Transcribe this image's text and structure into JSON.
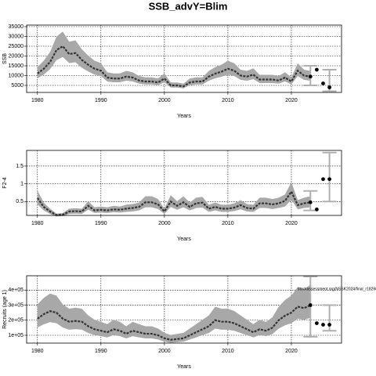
{
  "title": "SSB_advY=Blim",
  "chart_data": [
    {
      "type": "line",
      "ylabel": "SSB",
      "xlabel": "Years",
      "color": "#333333",
      "band_color": "#a8a8a8",
      "interval_color": "#b0b0b0",
      "grid": true,
      "x": [
        1980,
        1981,
        1982,
        1983,
        1984,
        1985,
        1986,
        1987,
        1988,
        1989,
        1990,
        1991,
        1992,
        1993,
        1994,
        1995,
        1996,
        1997,
        1998,
        1999,
        2000,
        2001,
        2002,
        2003,
        2004,
        2005,
        2006,
        2007,
        2008,
        2009,
        2010,
        2011,
        2012,
        2013,
        2014,
        2015,
        2016,
        2017,
        2018,
        2019,
        2020,
        2021,
        2022,
        2023
      ],
      "values": [
        11000,
        13500,
        17000,
        23000,
        25000,
        21000,
        21500,
        18000,
        15500,
        13500,
        12500,
        9000,
        8500,
        8500,
        9500,
        9000,
        7500,
        7000,
        7000,
        6500,
        8500,
        5000,
        5000,
        4500,
        6500,
        7000,
        7000,
        9500,
        11000,
        12000,
        13500,
        12500,
        10000,
        9500,
        10500,
        8000,
        8000,
        8000,
        7500,
        9000,
        7000,
        12500,
        10000,
        9500
      ],
      "low": [
        8600,
        10500,
        13300,
        17900,
        19500,
        16400,
        16800,
        14000,
        12100,
        10500,
        9800,
        7000,
        6600,
        6600,
        7400,
        7000,
        5900,
        5500,
        5500,
        5100,
        6600,
        3900,
        3900,
        3500,
        5100,
        5500,
        5500,
        7400,
        8600,
        9400,
        10500,
        9800,
        7800,
        7400,
        8200,
        6200,
        6200,
        6200,
        5900,
        7000,
        5500,
        9800,
        7800,
        7400
      ],
      "high": [
        14300,
        17600,
        22100,
        29900,
        32500,
        27300,
        28000,
        23400,
        20200,
        17600,
        16300,
        11700,
        11100,
        11100,
        12400,
        11700,
        9800,
        9100,
        9100,
        8500,
        11100,
        6500,
        6500,
        5900,
        8500,
        9100,
        9100,
        12400,
        14300,
        15600,
        17600,
        16300,
        13000,
        12400,
        13700,
        10400,
        10400,
        10400,
        9800,
        11700,
        9100,
        16300,
        13000,
        12400
      ],
      "forecast": {
        "x": [
          2023,
          2024,
          2025,
          2026
        ],
        "values": [
          9500,
          13000,
          6000,
          4000
        ]
      },
      "intervals": [
        {
          "x": 2023,
          "low": 5000,
          "high": 15000
        },
        {
          "x": 2026,
          "low": 2000,
          "high": 13000
        }
      ],
      "xlim": [
        1978.3,
        2027.9
      ],
      "xticks": [
        1980,
        1990,
        2000,
        2010,
        2020
      ],
      "ylim": [
        1400,
        35800
      ],
      "yticks": [
        5000,
        10000,
        15000,
        20000,
        25000,
        30000,
        35000
      ]
    },
    {
      "type": "line",
      "ylabel": "F2-4",
      "xlabel": "Years",
      "color": "#333333",
      "band_color": "#a8a8a8",
      "interval_color": "#b0b0b0",
      "grid": true,
      "x": [
        1980,
        1981,
        1982,
        1983,
        1984,
        1985,
        1986,
        1987,
        1988,
        1989,
        1990,
        1991,
        1992,
        1993,
        1994,
        1995,
        1996,
        1997,
        1998,
        1999,
        2000,
        2001,
        2002,
        2003,
        2004,
        2005,
        2006,
        2007,
        2008,
        2009,
        2010,
        2011,
        2012,
        2013,
        2014,
        2015,
        2016,
        2017,
        2018,
        2019,
        2020,
        2021,
        2022,
        2023
      ],
      "values": [
        0.6,
        0.35,
        0.22,
        0.12,
        0.13,
        0.22,
        0.23,
        0.22,
        0.38,
        0.25,
        0.27,
        0.25,
        0.28,
        0.27,
        0.3,
        0.32,
        0.35,
        0.48,
        0.48,
        0.42,
        0.22,
        0.5,
        0.38,
        0.48,
        0.35,
        0.45,
        0.47,
        0.3,
        0.35,
        0.3,
        0.3,
        0.33,
        0.4,
        0.32,
        0.3,
        0.45,
        0.45,
        0.42,
        0.45,
        0.52,
        0.78,
        0.4,
        0.45,
        0.48
      ],
      "low": [
        0.42,
        0.25,
        0.15,
        0.08,
        0.09,
        0.15,
        0.16,
        0.15,
        0.27,
        0.18,
        0.19,
        0.18,
        0.2,
        0.19,
        0.21,
        0.22,
        0.25,
        0.34,
        0.34,
        0.29,
        0.15,
        0.35,
        0.27,
        0.34,
        0.25,
        0.32,
        0.33,
        0.21,
        0.25,
        0.21,
        0.21,
        0.23,
        0.28,
        0.22,
        0.21,
        0.32,
        0.32,
        0.29,
        0.32,
        0.36,
        0.55,
        0.28,
        0.32,
        0.34
      ],
      "high": [
        0.81,
        0.47,
        0.3,
        0.16,
        0.18,
        0.3,
        0.31,
        0.3,
        0.51,
        0.34,
        0.36,
        0.34,
        0.38,
        0.36,
        0.41,
        0.43,
        0.47,
        0.65,
        0.65,
        0.57,
        0.3,
        0.68,
        0.51,
        0.65,
        0.47,
        0.61,
        0.63,
        0.41,
        0.47,
        0.41,
        0.41,
        0.45,
        0.54,
        0.43,
        0.41,
        0.61,
        0.61,
        0.57,
        0.61,
        0.7,
        1.05,
        0.54,
        0.61,
        0.65
      ],
      "forecast": {
        "x": [
          2023,
          2024,
          2025,
          2026
        ],
        "values": [
          0.48,
          0.28,
          1.13,
          1.13
        ]
      },
      "intervals": [
        {
          "x": 2023,
          "low": 0.25,
          "high": 0.8
        },
        {
          "x": 2026,
          "low": 0.5,
          "high": 1.88
        }
      ],
      "xlim": [
        1978.3,
        2027.9
      ],
      "xticks": [
        1980,
        1990,
        2000,
        2010,
        2020
      ],
      "ylim": [
        0.11,
        1.94
      ],
      "yticks": [
        0.5,
        1.0,
        1.5
      ]
    },
    {
      "type": "line",
      "ylabel": "Recruits (age 1)",
      "xlabel": "Years",
      "color": "#333333",
      "band_color": "#a8a8a8",
      "interval_color": "#b0b0b0",
      "grid": true,
      "annotation": "stockassessment.org/NSSK2024/final_r18260_git:c9c6",
      "x": [
        1980,
        1981,
        1982,
        1983,
        1984,
        1985,
        1986,
        1987,
        1988,
        1989,
        1990,
        1991,
        1992,
        1993,
        1994,
        1995,
        1996,
        1997,
        1998,
        1999,
        2000,
        2001,
        2002,
        2003,
        2004,
        2005,
        2006,
        2007,
        2008,
        2009,
        2010,
        2011,
        2012,
        2013,
        2014,
        2015,
        2016,
        2017,
        2018,
        2019,
        2020,
        2021,
        2022,
        2023
      ],
      "values": [
        210000,
        240000,
        260000,
        250000,
        210000,
        190000,
        195000,
        190000,
        160000,
        140000,
        130000,
        120000,
        140000,
        130000,
        110000,
        130000,
        120000,
        110000,
        110000,
        100000,
        80000,
        70000,
        75000,
        80000,
        100000,
        120000,
        140000,
        160000,
        200000,
        190000,
        190000,
        180000,
        160000,
        140000,
        120000,
        140000,
        130000,
        150000,
        200000,
        230000,
        250000,
        290000,
        280000,
        300000
      ],
      "low": [
        151000,
        173000,
        187000,
        180000,
        151000,
        137000,
        140000,
        137000,
        115000,
        101000,
        94000,
        86000,
        101000,
        94000,
        79000,
        94000,
        86000,
        79000,
        79000,
        72000,
        58000,
        50000,
        54000,
        58000,
        72000,
        86000,
        101000,
        115000,
        144000,
        137000,
        137000,
        130000,
        115000,
        101000,
        86000,
        101000,
        94000,
        108000,
        144000,
        166000,
        180000,
        209000,
        202000,
        216000
      ],
      "high": [
        305000,
        348000,
        377000,
        363000,
        305000,
        276000,
        283000,
        276000,
        232000,
        203000,
        189000,
        174000,
        203000,
        189000,
        160000,
        189000,
        174000,
        160000,
        160000,
        145000,
        116000,
        102000,
        109000,
        116000,
        145000,
        174000,
        203000,
        232000,
        290000,
        276000,
        276000,
        261000,
        232000,
        203000,
        174000,
        203000,
        189000,
        218000,
        290000,
        334000,
        363000,
        421000,
        406000,
        435000
      ],
      "forecast": {
        "x": [
          2023,
          2024,
          2025,
          2026
        ],
        "values": [
          300000,
          180000,
          170000,
          170000
        ]
      },
      "intervals": [
        {
          "x": 2023,
          "low": 90000,
          "high": 490000
        },
        {
          "x": 2026,
          "low": 130000,
          "high": 300000
        }
      ],
      "xlim": [
        1978.3,
        2027.9
      ],
      "xticks": [
        1980,
        1990,
        2000,
        2010,
        2020
      ],
      "ylim": [
        48000,
        495000
      ],
      "yticks": [
        {
          "value": 100000,
          "label": "1e+05"
        },
        {
          "value": 200000,
          "label": "2e+05"
        },
        {
          "value": 300000,
          "label": "3e+05"
        },
        {
          "value": 400000,
          "label": "4e+05"
        }
      ]
    }
  ]
}
